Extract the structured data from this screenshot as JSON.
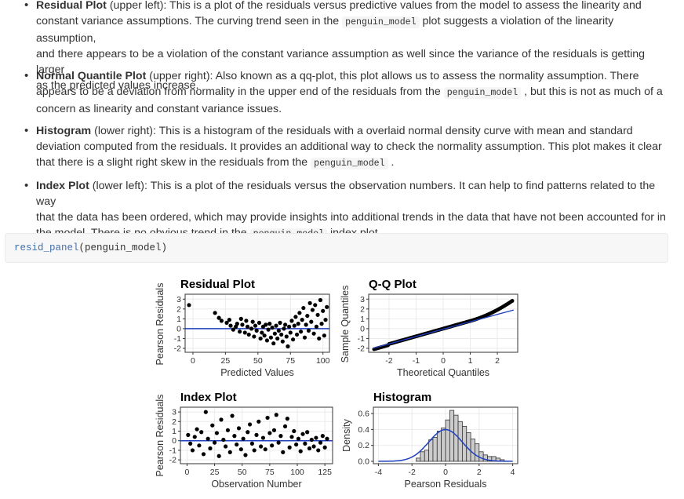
{
  "bullets": [
    {
      "lines": [
        [
          {
            "t": "Residual Plot",
            "s": "b"
          },
          {
            "t": " (upper left): This is a plot of the residuals versus predictive values from the model to assess the linearity and"
          }
        ],
        [
          {
            "t": "constant variance assumptions. The curving trend seen in the "
          },
          {
            "t": "penguin_model",
            "s": "c"
          },
          {
            "t": " plot suggests a violation of the linearity assumption,"
          }
        ],
        [
          {
            "t": "and there appears to be a violation of the constant variance assumption as well since the variance of the residuals is getting larger"
          }
        ],
        [
          {
            "t": "as the predicted values increase."
          }
        ]
      ]
    },
    {
      "lines": [
        [
          {
            "t": "Normal Quantile Plot",
            "s": "b"
          },
          {
            "t": " (upper right): Also known as a qq-plot, this plot allows us to assess the normality assumption. There"
          }
        ],
        [
          {
            "t": "appears to be a deviation from normality in the upper end of the residuals from the "
          },
          {
            "t": "penguin_model",
            "s": "c"
          },
          {
            "t": " , but this is not as much of a"
          }
        ],
        [
          {
            "t": "concern as linearity and constant variance issues."
          }
        ]
      ]
    },
    {
      "lines": [
        [
          {
            "t": "Histogram",
            "s": "b"
          },
          {
            "t": " (lower right): This is a histogram of the residuals with a overlaid normal density curve with mean and standard"
          }
        ],
        [
          {
            "t": "deviation computed from the residuals. It provides an additional way to check the normality assumption. This plot makes it clear"
          }
        ],
        [
          {
            "t": "that there is a slight right skew in the residuals from the "
          },
          {
            "t": "penguin_model",
            "s": "c"
          },
          {
            "t": " ."
          }
        ]
      ]
    },
    {
      "lines": [
        [
          {
            "t": "Index Plot",
            "s": "b"
          },
          {
            "t": " (lower left): This is a plot of the residuals versus the observation numbers. It can help to find patterns related to the way"
          }
        ],
        [
          {
            "t": "that the data has been ordered, which may provide insights into additional trends in the data that have not been accounted for in"
          }
        ],
        [
          {
            "t": "the model. There is no obvious trend in the "
          },
          {
            "t": "penguin_model",
            "s": "c"
          },
          {
            "t": " index plot."
          }
        ]
      ]
    }
  ],
  "code": {
    "fn": "resid_panel",
    "args": "(penguin_model)"
  },
  "colors": {
    "points": "#000000",
    "line": "#1f3fbf",
    "hist_fill": "#cccccc",
    "panel_grid": "#ebebeb"
  },
  "chart_data": [
    {
      "type": "scatter",
      "title": "Residual Plot",
      "xlabel": "Predicted Values",
      "ylabel": "Pearson Residuals",
      "xticks": [
        0,
        25,
        50,
        75,
        100
      ],
      "yticks": [
        -2,
        -1,
        0,
        1,
        2,
        3
      ],
      "xlim": [
        -6,
        105
      ],
      "ylim": [
        -2.4,
        3.5
      ],
      "hline": 0,
      "grid": true,
      "points": [
        [
          -3,
          2.4
        ],
        [
          17,
          1.6
        ],
        [
          20,
          1.1
        ],
        [
          22,
          0.8
        ],
        [
          26,
          0.6
        ],
        [
          28,
          0.9
        ],
        [
          29,
          0.3
        ],
        [
          31,
          -0.1
        ],
        [
          33,
          0.2
        ],
        [
          34,
          0.5
        ],
        [
          36,
          -0.3
        ],
        [
          37,
          1.0
        ],
        [
          38,
          0.4
        ],
        [
          40,
          -0.4
        ],
        [
          41,
          0.8
        ],
        [
          42,
          0.2
        ],
        [
          43,
          -0.6
        ],
        [
          45,
          0.0
        ],
        [
          46,
          0.7
        ],
        [
          47,
          -0.8
        ],
        [
          48,
          0.3
        ],
        [
          49,
          -0.2
        ],
        [
          51,
          0.6
        ],
        [
          52,
          -1.0
        ],
        [
          53,
          -0.4
        ],
        [
          54,
          0.2
        ],
        [
          55,
          -0.7
        ],
        [
          56,
          0.4
        ],
        [
          57,
          -1.2
        ],
        [
          58,
          -0.1
        ],
        [
          59,
          0.5
        ],
        [
          60,
          -0.9
        ],
        [
          61,
          0.1
        ],
        [
          62,
          -1.5
        ],
        [
          63,
          -0.5
        ],
        [
          64,
          0.3
        ],
        [
          65,
          -1.0
        ],
        [
          66,
          -0.2
        ],
        [
          67,
          0.6
        ],
        [
          68,
          -0.6
        ],
        [
          69,
          -1.3
        ],
        [
          70,
          0.0
        ],
        [
          71,
          0.4
        ],
        [
          72,
          -0.8
        ],
        [
          73,
          -1.8
        ],
        [
          74,
          0.2
        ],
        [
          75,
          -0.4
        ],
        [
          76,
          0.8
        ],
        [
          77,
          -1.1
        ],
        [
          78,
          0.3
        ],
        [
          79,
          1.2
        ],
        [
          80,
          -0.6
        ],
        [
          81,
          0.5
        ],
        [
          82,
          1.6
        ],
        [
          83,
          -0.3
        ],
        [
          84,
          0.9
        ],
        [
          85,
          2.1
        ],
        [
          86,
          -0.9
        ],
        [
          87,
          0.4
        ],
        [
          88,
          1.3
        ],
        [
          89,
          -0.2
        ],
        [
          90,
          2.6
        ],
        [
          91,
          0.7
        ],
        [
          92,
          1.9
        ],
        [
          93,
          -0.5
        ],
        [
          94,
          2.4
        ],
        [
          95,
          0.2
        ],
        [
          96,
          1.4
        ],
        [
          97,
          -1.0
        ],
        [
          98,
          2.9
        ],
        [
          99,
          0.5
        ],
        [
          100,
          1.8
        ],
        [
          101,
          -0.7
        ],
        [
          102,
          0.9
        ],
        [
          103,
          2.2
        ]
      ]
    },
    {
      "type": "scatter",
      "title": "Q-Q Plot",
      "xlabel": "Theoretical Quantiles",
      "ylabel": "Sample Quantiles",
      "xticks": [
        -2,
        -1,
        0,
        1,
        2
      ],
      "yticks": [
        -2,
        -1,
        0,
        1,
        2,
        3
      ],
      "xlim": [
        -2.75,
        2.75
      ],
      "ylim": [
        -2.4,
        3.5
      ],
      "refline": [
        [
          -2.6,
          -2.0
        ],
        [
          2.6,
          1.9
        ]
      ],
      "grid": true
    },
    {
      "type": "scatter",
      "title": "Index Plot",
      "xlabel": "Observation Number",
      "ylabel": "Pearson Residuals",
      "xticks": [
        0,
        25,
        50,
        75,
        100,
        125
      ],
      "yticks": [
        -2,
        -1,
        0,
        1,
        2,
        3
      ],
      "xlim": [
        -6,
        132
      ],
      "ylim": [
        -2.4,
        3.5
      ],
      "hline": 0,
      "grid": true,
      "points": [
        [
          1,
          0.6
        ],
        [
          3,
          -0.3
        ],
        [
          5,
          -1.0
        ],
        [
          7,
          0.4
        ],
        [
          9,
          1.2
        ],
        [
          11,
          -0.5
        ],
        [
          13,
          0.9
        ],
        [
          15,
          -1.4
        ],
        [
          17,
          3.0
        ],
        [
          19,
          0.2
        ],
        [
          21,
          -0.8
        ],
        [
          23,
          1.6
        ],
        [
          25,
          -0.2
        ],
        [
          27,
          0.8
        ],
        [
          29,
          -1.6
        ],
        [
          31,
          2.2
        ],
        [
          33,
          0.1
        ],
        [
          35,
          -0.6
        ],
        [
          37,
          1.1
        ],
        [
          39,
          -1.2
        ],
        [
          41,
          2.6
        ],
        [
          43,
          0.5
        ],
        [
          45,
          -0.4
        ],
        [
          47,
          1.3
        ],
        [
          49,
          -0.9
        ],
        [
          51,
          0.2
        ],
        [
          53,
          -1.5
        ],
        [
          55,
          0.9
        ],
        [
          57,
          1.7
        ],
        [
          59,
          -0.3
        ],
        [
          61,
          -1.0
        ],
        [
          63,
          0.6
        ],
        [
          65,
          2.0
        ],
        [
          67,
          -0.6
        ],
        [
          69,
          0.3
        ],
        [
          71,
          -0.9
        ],
        [
          73,
          2.4
        ],
        [
          75,
          0.8
        ],
        [
          77,
          -0.5
        ],
        [
          79,
          1.1
        ],
        [
          81,
          2.7
        ],
        [
          83,
          -0.2
        ],
        [
          85,
          0.5
        ],
        [
          87,
          -1.2
        ],
        [
          89,
          1.5
        ],
        [
          91,
          2.3
        ],
        [
          93,
          -0.7
        ],
        [
          95,
          0.4
        ],
        [
          97,
          1.0
        ],
        [
          99,
          -0.4
        ],
        [
          101,
          0.2
        ],
        [
          103,
          -1.1
        ],
        [
          105,
          0.7
        ],
        [
          107,
          -0.3
        ],
        [
          109,
          0.9
        ],
        [
          111,
          -0.8
        ],
        [
          113,
          0.1
        ],
        [
          115,
          -0.6
        ],
        [
          117,
          0.3
        ],
        [
          119,
          -1.0
        ],
        [
          121,
          -0.2
        ],
        [
          123,
          0.5
        ],
        [
          125,
          -0.7
        ],
        [
          127,
          0.2
        ]
      ]
    },
    {
      "type": "bar",
      "title": "Histogram",
      "xlabel": "Pearson Residuals",
      "ylabel": "Density",
      "xticks": [
        -4,
        -2,
        0,
        2,
        4
      ],
      "yticks": [
        0.0,
        0.2,
        0.4,
        0.6
      ],
      "xlim": [
        -4.3,
        4.3
      ],
      "ylim": [
        -0.03,
        0.68
      ],
      "grid": true,
      "bin_width": 0.25,
      "bin_start": -1.75,
      "values": [
        0.04,
        0.12,
        0.14,
        0.27,
        0.3,
        0.38,
        0.42,
        0.52,
        0.64,
        0.58,
        0.5,
        0.44,
        0.36,
        0.28,
        0.22,
        0.12,
        0.08,
        0.06,
        0.06,
        0.04,
        0.02
      ],
      "density_curve": {
        "mean": 0.0,
        "sd": 1.0
      }
    }
  ]
}
